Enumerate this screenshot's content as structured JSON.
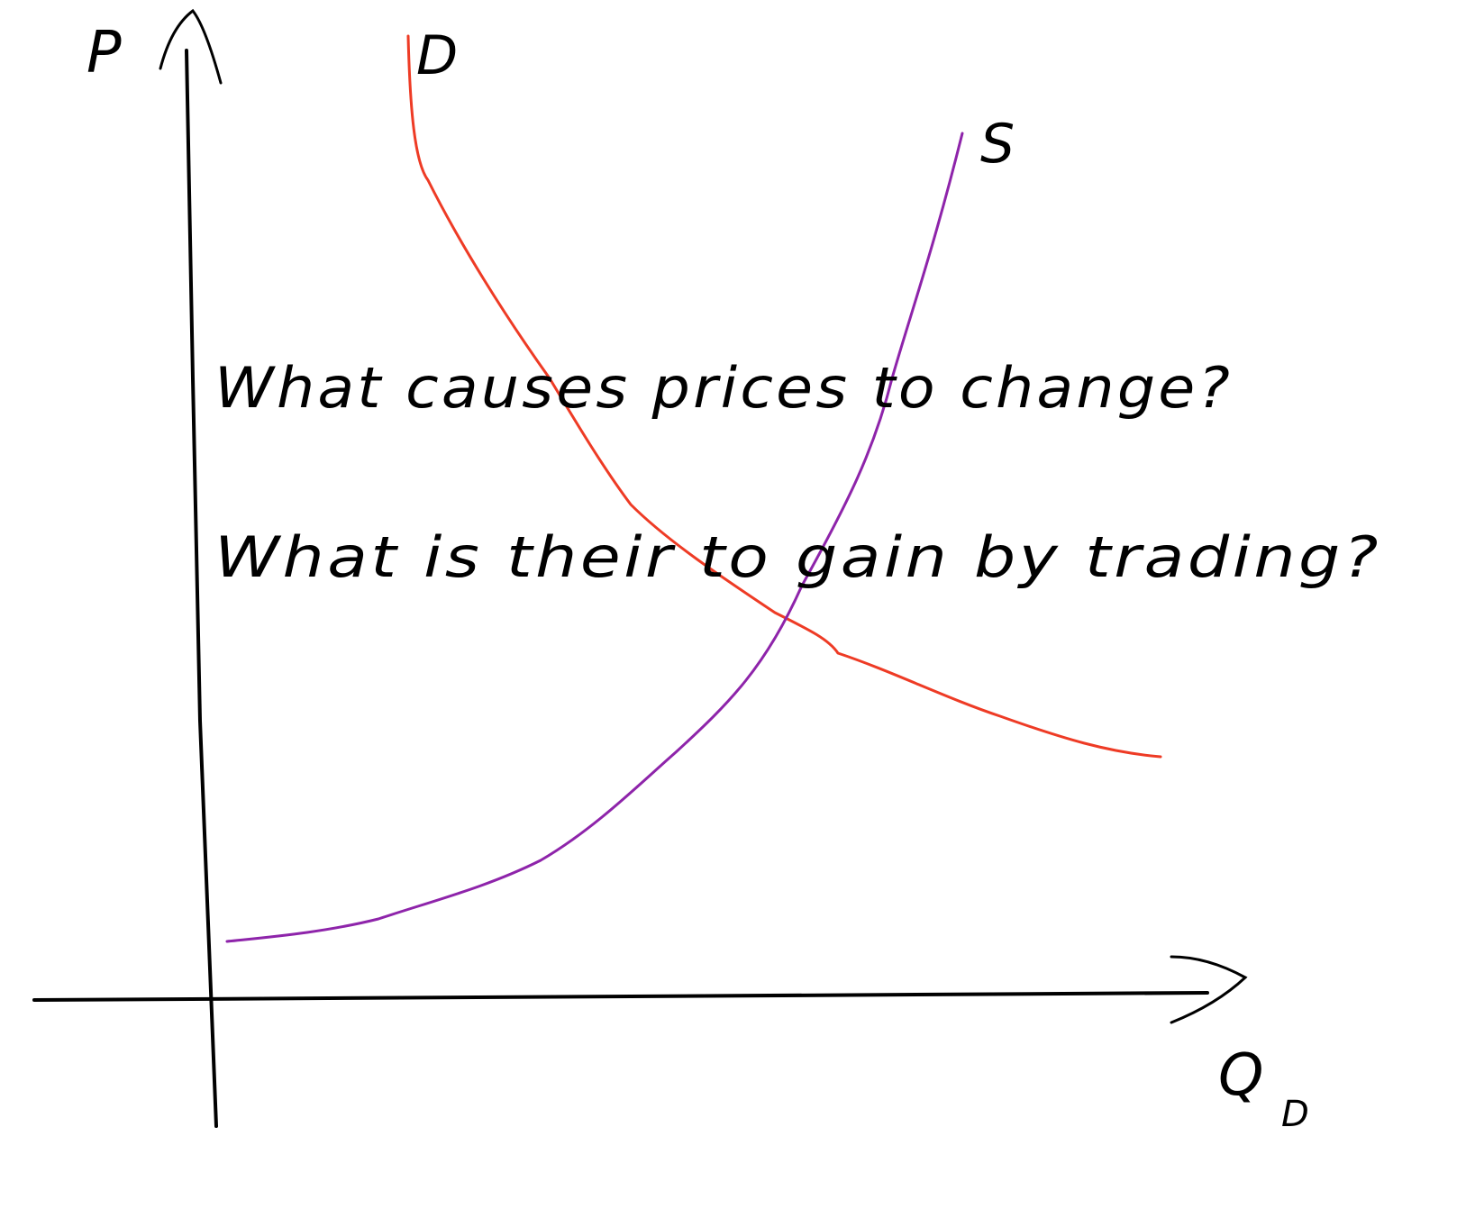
{
  "axes": {
    "y_label": "P",
    "x_label": "Q",
    "x_label_subscript": "D",
    "axis_color": "#000000"
  },
  "curves": {
    "demand": {
      "label": "D",
      "color": "#ee3b25"
    },
    "supply": {
      "label": "S",
      "color": "#8e24aa"
    }
  },
  "notes": {
    "line1": "What causes prices to change?",
    "line2": "What is their to gain by trading?"
  }
}
